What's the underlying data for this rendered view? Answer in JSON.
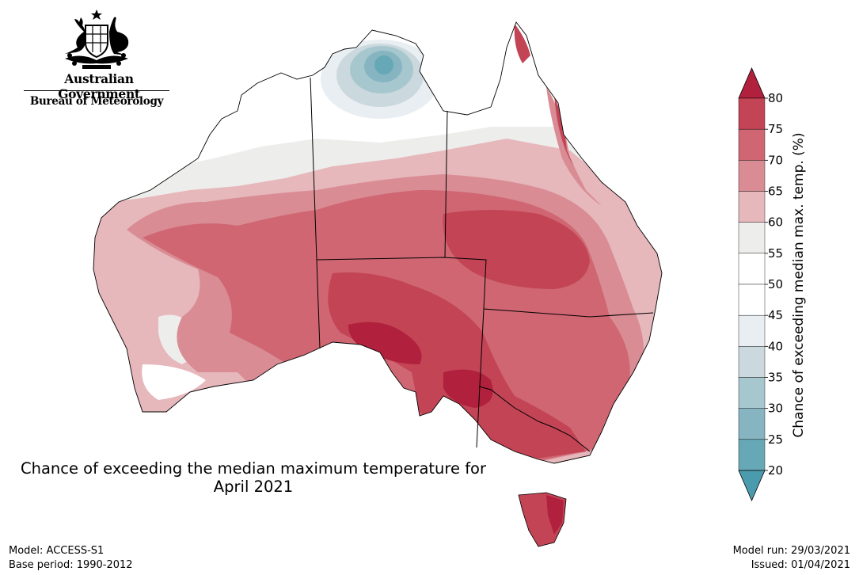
{
  "agency": {
    "line1": "Australian Government",
    "line2": "Bureau of Meteorology",
    "emblem_icon": "coat-of-arms-icon"
  },
  "map": {
    "title_line1": "Chance of exceeding the median maximum temperature for",
    "title_line2": "April 2021",
    "region": "Australia",
    "state_borders": true
  },
  "colorbar": {
    "label": "Chance of exceeding median max. temp. (%)",
    "ticks": [
      "80",
      "75",
      "70",
      "65",
      "60",
      "55",
      "50",
      "45",
      "40",
      "35",
      "30",
      "25",
      "20"
    ],
    "bins": [
      {
        "range": "75-80",
        "color": "#c24455"
      },
      {
        "range": "70-75",
        "color": "#cf6672"
      },
      {
        "range": "65-70",
        "color": "#d98c93"
      },
      {
        "range": "60-65",
        "color": "#e6b7bb"
      },
      {
        "range": "55-60",
        "color": "#ededec"
      },
      {
        "range": "50-55",
        "color": "#ffffff"
      },
      {
        "range": "45-50",
        "color": "#ffffff"
      },
      {
        "range": "40-45",
        "color": "#e8eef1"
      },
      {
        "range": "35-40",
        "color": "#cbd8dd"
      },
      {
        "range": "30-35",
        "color": "#a7c7cf"
      },
      {
        "range": "25-30",
        "color": "#86b5c1"
      },
      {
        "range": "20-25",
        "color": "#66a8b6"
      }
    ],
    "over_color": "#b1203c",
    "under_color": "#4b9bae"
  },
  "footer": {
    "model": "Model: ACCESS-S1",
    "base_period": "Base period: 1990-2012",
    "model_run": "Model run: 29/03/2021",
    "issued": "Issued: 01/04/2021"
  }
}
